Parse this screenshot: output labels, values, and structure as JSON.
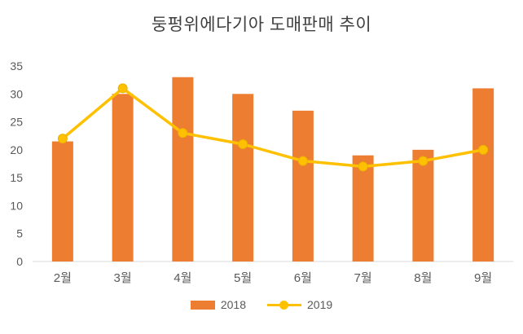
{
  "chart_data": {
    "type": "bar",
    "subtype": "bar-and-line-combo",
    "title": "둥펑위에다기아 도매판매 추이",
    "categories": [
      "2월",
      "3월",
      "4월",
      "5월",
      "6월",
      "7월",
      "8월",
      "9월"
    ],
    "series": [
      {
        "name": "2018",
        "type": "bar",
        "color": "#ED7D31",
        "values": [
          21.5,
          30,
          33,
          30,
          27,
          19,
          20,
          31
        ]
      },
      {
        "name": "2019",
        "type": "line",
        "color": "#FFC000",
        "values": [
          22,
          31,
          23,
          21,
          18,
          17,
          18,
          20
        ]
      }
    ],
    "xlabel": "",
    "ylabel": "",
    "ylim": [
      0,
      35
    ],
    "ytick_step": 5,
    "yticks": [
      0,
      5,
      10,
      15,
      20,
      25,
      30,
      35
    ],
    "grid": false,
    "legend_position": "bottom"
  },
  "colors": {
    "title_text": "#404040",
    "axis_text": "#595959",
    "axis_line": "#D9D9D9",
    "background": "#FFFFFF",
    "marker_stroke": "#EBB400"
  }
}
